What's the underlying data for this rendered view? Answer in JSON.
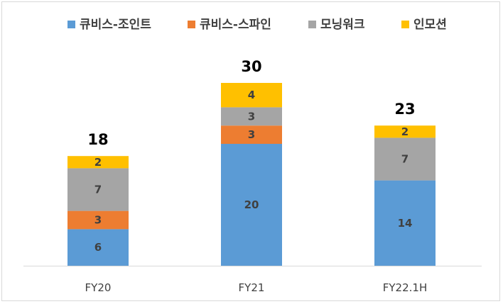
{
  "chart_data": {
    "type": "bar",
    "stacked": true,
    "categories": [
      "FY20",
      "FY21",
      "FY22.1H"
    ],
    "series": [
      {
        "name": "큐비스-조인트",
        "color": "#5b9bd5",
        "values": [
          6,
          20,
          14
        ]
      },
      {
        "name": "큐비스-스파인",
        "color": "#ed7d31",
        "values": [
          3,
          3,
          0
        ]
      },
      {
        "name": "모닝워크",
        "color": "#a5a5a5",
        "values": [
          7,
          3,
          7
        ]
      },
      {
        "name": "인모션",
        "color": "#ffc000",
        "values": [
          2,
          4,
          2
        ]
      }
    ],
    "totals": [
      18,
      30,
      23
    ],
    "legend_position": "top",
    "grid": false,
    "title": "",
    "xlabel": "",
    "ylabel": ""
  }
}
